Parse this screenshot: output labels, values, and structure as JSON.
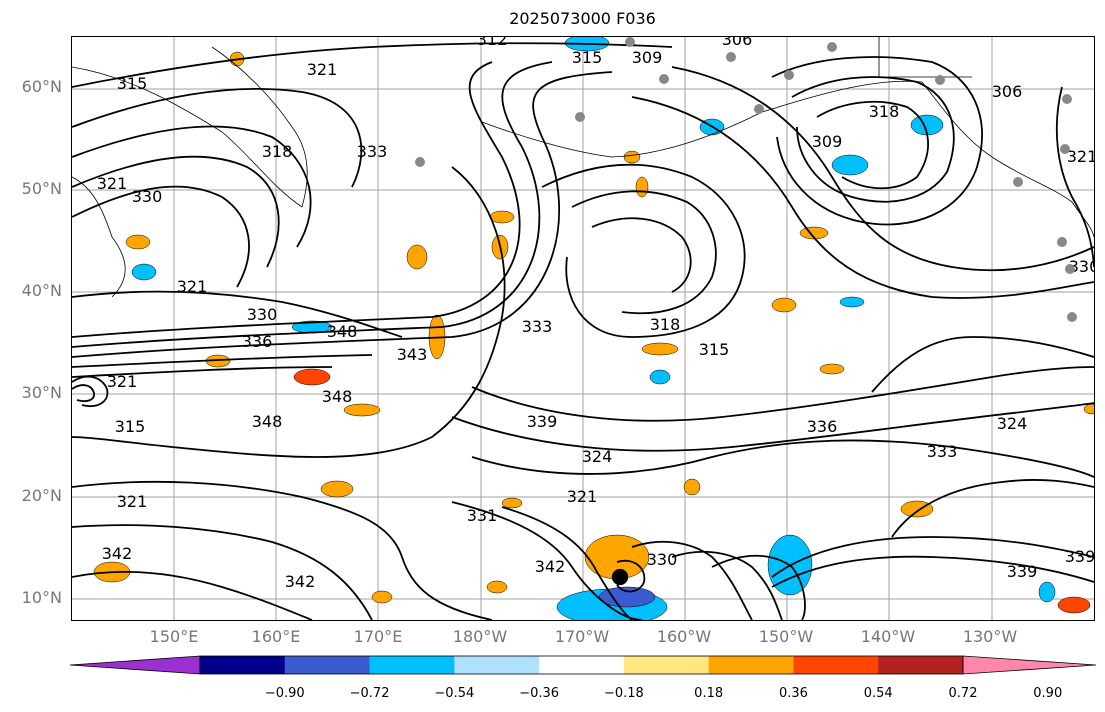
{
  "title": "2025073000 F036",
  "lat_labels": [
    "60°N",
    "50°N",
    "40°N",
    "30°N",
    "20°N",
    "10°N"
  ],
  "lon_labels": [
    "150°E",
    "160°E",
    "170°E",
    "180°W",
    "170°W",
    "160°W",
    "150°W",
    "140°W",
    "130°W"
  ],
  "contour_labels": [
    "312",
    "315",
    "306",
    "309",
    "321",
    "315",
    "318",
    "321",
    "330",
    "333",
    "318",
    "309",
    "306",
    "321",
    "321",
    "330",
    "336",
    "348",
    "343",
    "333",
    "318",
    "315",
    "321",
    "315",
    "348",
    "348",
    "339",
    "336",
    "333",
    "324",
    "324",
    "321",
    "331",
    "321",
    "330",
    "342",
    "342",
    "339",
    "339",
    "342",
    "330"
  ],
  "colorbar": {
    "ticks": [
      "−0.90",
      "−0.72",
      "−0.54",
      "−0.36",
      "−0.18",
      "0.18",
      "0.36",
      "0.54",
      "0.72",
      "0.90"
    ],
    "colors": [
      "#9b30d0",
      "#00008b",
      "#3b5bd0",
      "#00bfff",
      "#b0e0ff",
      "#ffffff",
      "#ffe680",
      "#ffa500",
      "#ff4500",
      "#b22222",
      "#ff88aa"
    ]
  },
  "colors": {
    "contour": "#000000",
    "grid": "#a0a0a0",
    "coast": "#000000",
    "station": "#888888",
    "tick_text": "#777777"
  }
}
